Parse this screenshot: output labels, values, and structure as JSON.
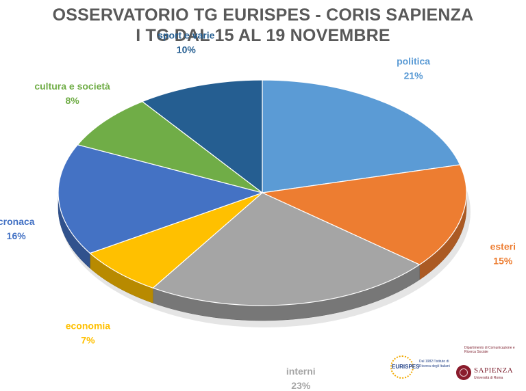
{
  "header": {
    "title_line1": "OSSERVATORIO TG EURISPES - CORIS SAPIENZA",
    "title_line2": "I TG DAL 15 AL 19 NOVEMBRE"
  },
  "chart_data": {
    "type": "pie",
    "title": "OSSERVATORIO TG EURISPES - CORIS SAPIENZA — I TG DAL 15 AL 19 NOVEMBRE",
    "slices": [
      {
        "label": "politica",
        "value": 21,
        "display": "21%",
        "color": "#5b9bd5"
      },
      {
        "label": "esteri",
        "value": 15,
        "display": "15%",
        "color": "#ed7d31"
      },
      {
        "label": "interni",
        "value": 23,
        "display": "23%",
        "color": "#a5a5a5"
      },
      {
        "label": "economia",
        "value": 7,
        "display": "7%",
        "color": "#ffc000"
      },
      {
        "label": "cronaca",
        "value": 16,
        "display": "16%",
        "color": "#4472c4"
      },
      {
        "label": "cultura e società",
        "value": 8,
        "display": "8%",
        "color": "#70ad47"
      },
      {
        "label": "sport e varie",
        "value": 10,
        "display": "10%",
        "color": "#255e91"
      }
    ],
    "legend": "none",
    "data_labels": "outside"
  },
  "logos": {
    "eurispes_name": "EURISPES",
    "eurispes_note": "Dal 1982 l'Istituto di Ricerca degli Italiani",
    "sapienza_dept": "Dipartimento di Comunicazione e Ricerca Sociale",
    "sapienza_name": "SAPIENZA",
    "sapienza_sub": "Università di Roma"
  }
}
